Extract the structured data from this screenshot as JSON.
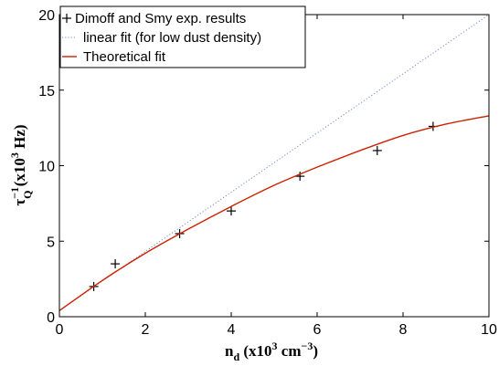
{
  "chart_data": {
    "type": "line",
    "x_axis": {
      "label_main": "n",
      "label_sub": "d",
      "label_open": " (x10",
      "label_sup": "3",
      "label_unit": " cm",
      "label_unit_sup": "−3",
      "label_close": ")",
      "min": 0,
      "max": 10,
      "ticks": [
        0,
        2,
        4,
        6,
        8,
        10
      ]
    },
    "y_axis": {
      "label_main": "τ",
      "label_sup": "−1",
      "label_sub": "Q",
      "label_open": " (x10",
      "label_sup2": "3",
      "label_close": " Hz)",
      "min": 0,
      "max": 20,
      "ticks": [
        0,
        5,
        10,
        15,
        20
      ]
    },
    "grid": false,
    "legend_position": "top-left",
    "series": [
      {
        "name": "Dimoff and Smy exp. results",
        "style": "markers",
        "marker": "plus",
        "color": "#000000",
        "x": [
          0.8,
          1.3,
          2.8,
          4.0,
          5.6,
          7.4,
          8.7
        ],
        "y": [
          2.0,
          3.5,
          5.5,
          7.0,
          9.3,
          11.0,
          12.6
        ]
      },
      {
        "name": "linear fit (for low dust density)",
        "style": "dotted",
        "color": "#7b86d4",
        "x": [
          0,
          10
        ],
        "y": [
          0.4,
          20.0
        ]
      },
      {
        "name": "Theoretical fit",
        "style": "solid",
        "color": "#cc2200",
        "x": [
          0,
          1,
          2,
          3,
          4,
          5,
          6,
          7,
          8,
          9,
          10
        ],
        "y": [
          0.4,
          2.4,
          4.2,
          5.8,
          7.3,
          8.7,
          9.9,
          11.0,
          12.0,
          12.75,
          13.3
        ]
      }
    ]
  }
}
